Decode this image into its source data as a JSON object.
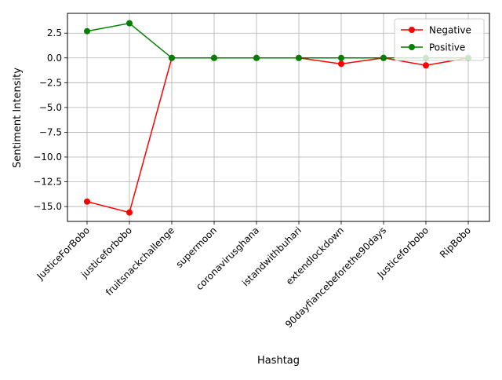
{
  "chart_data": {
    "type": "line",
    "title": "",
    "xlabel": "Hashtag",
    "ylabel": "Sentiment Intensity",
    "categories": [
      "JusticeForBobo",
      "justiceforbobo",
      "fruitsnackchallenge",
      "supermoon",
      "coronavirusghana",
      "istandwithbuhari",
      "extendlockdown",
      "90dayfiancebeforethe90days",
      "Justiceforbobo",
      "RipBobo"
    ],
    "ylim": [
      -16.5,
      4.5
    ],
    "yticks": [
      -15.0,
      -12.5,
      -10.0,
      -7.5,
      -5.0,
      -2.5,
      0.0,
      2.5
    ],
    "ytick_labels": [
      "−15.0",
      "−12.5",
      "−10.0",
      "−7.5",
      "−5.0",
      "−2.5",
      "0.0",
      "2.5"
    ],
    "grid": true,
    "legend_position": "top-right",
    "series": [
      {
        "name": "Negative",
        "color": "#ff0000",
        "marker": "circle",
        "values": [
          -14.5,
          -15.6,
          0.0,
          0.0,
          0.0,
          0.0,
          -0.6,
          0.0,
          -0.75,
          0.0
        ]
      },
      {
        "name": "Positive",
        "color": "#008000",
        "marker": "circle",
        "values": [
          2.7,
          3.5,
          0.0,
          0.0,
          0.0,
          0.0,
          0.0,
          0.0,
          0.0,
          0.0
        ]
      }
    ]
  }
}
